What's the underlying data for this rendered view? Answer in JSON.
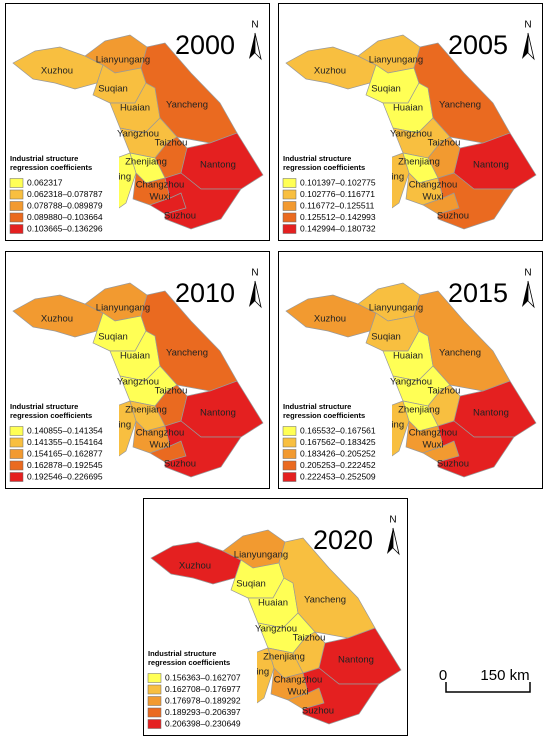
{
  "panels": [
    {
      "year": "2000",
      "north": "N",
      "legend_title": [
        "Industrial structure",
        "regression coefficients"
      ],
      "legend": [
        {
          "label": "0.062317",
          "color": "#ffff55"
        },
        {
          "label": "0.062318–0.078787",
          "color": "#f8bf40"
        },
        {
          "label": "0.078788–0.089879",
          "color": "#f29a30"
        },
        {
          "label": "0.089880–0.103664",
          "color": "#ea6a20"
        },
        {
          "label": "0.103665–0.136296",
          "color": "#e42020"
        }
      ],
      "regions": [
        {
          "name": "Xuzhou",
          "color": "#f8bf40"
        },
        {
          "name": "Lianyungang",
          "color": "#f29a30"
        },
        {
          "name": "Suqian",
          "color": "#f8bf40"
        },
        {
          "name": "Huaian",
          "color": "#f8bf40"
        },
        {
          "name": "Yancheng",
          "color": "#ea6a20"
        },
        {
          "name": "Yangzhou",
          "color": "#f8bf40"
        },
        {
          "name": "Taizhou",
          "color": "#ea6a20"
        },
        {
          "name": "Nantong",
          "color": "#e42020"
        },
        {
          "name": "Nanjing",
          "color": "#ffff55"
        },
        {
          "name": "Zhenjiang",
          "color": "#ffff55"
        },
        {
          "name": "Changzhou",
          "color": "#ea6a20"
        },
        {
          "name": "Wuxi",
          "color": "#e42020"
        },
        {
          "name": "Suzhou",
          "color": "#e42020"
        }
      ]
    },
    {
      "year": "2005",
      "north": "N",
      "legend_title": [
        "Industrial structure",
        "regression coefficients"
      ],
      "legend": [
        {
          "label": "0.101397–0.102775",
          "color": "#ffff55"
        },
        {
          "label": "0.102776–0.116771",
          "color": "#f8bf40"
        },
        {
          "label": "0.116772–0.125511",
          "color": "#f29a30"
        },
        {
          "label": "0.125512–0.142993",
          "color": "#ea6a20"
        },
        {
          "label": "0.142994–0.180732",
          "color": "#e42020"
        }
      ],
      "regions": [
        {
          "name": "Xuzhou",
          "color": "#f8bf40"
        },
        {
          "name": "Lianyungang",
          "color": "#f8bf40"
        },
        {
          "name": "Suqian",
          "color": "#ffff55"
        },
        {
          "name": "Huaian",
          "color": "#ffff55"
        },
        {
          "name": "Yancheng",
          "color": "#ea6a20"
        },
        {
          "name": "Yangzhou",
          "color": "#f8bf40"
        },
        {
          "name": "Taizhou",
          "color": "#f29a30"
        },
        {
          "name": "Nantong",
          "color": "#e42020"
        },
        {
          "name": "Nanjing",
          "color": "#f8bf40"
        },
        {
          "name": "Zhenjiang",
          "color": "#ffff55"
        },
        {
          "name": "Changzhou",
          "color": "#f8bf40"
        },
        {
          "name": "Wuxi",
          "color": "#f29a30"
        },
        {
          "name": "Suzhou",
          "color": "#ea6a20"
        }
      ]
    },
    {
      "year": "2010",
      "north": "N",
      "legend_title": [
        "Industrial structure",
        "regression coefficients"
      ],
      "legend": [
        {
          "label": "0.140855–0.141354",
          "color": "#ffff55"
        },
        {
          "label": "0.141355–0.154164",
          "color": "#f8bf40"
        },
        {
          "label": "0.154165–0.162877",
          "color": "#f29a30"
        },
        {
          "label": "0.162878–0.192545",
          "color": "#ea6a20"
        },
        {
          "label": "0.192546–0.226695",
          "color": "#e42020"
        }
      ],
      "regions": [
        {
          "name": "Xuzhou",
          "color": "#f29a30"
        },
        {
          "name": "Lianyungang",
          "color": "#f29a30"
        },
        {
          "name": "Suqian",
          "color": "#ffff55"
        },
        {
          "name": "Huaian",
          "color": "#ffff55"
        },
        {
          "name": "Yancheng",
          "color": "#ea6a20"
        },
        {
          "name": "Yangzhou",
          "color": "#ffff55"
        },
        {
          "name": "Taizhou",
          "color": "#ea6a20"
        },
        {
          "name": "Nantong",
          "color": "#e42020"
        },
        {
          "name": "Nanjing",
          "color": "#f8bf40"
        },
        {
          "name": "Zhenjiang",
          "color": "#f8bf40"
        },
        {
          "name": "Changzhou",
          "color": "#f29a30"
        },
        {
          "name": "Wuxi",
          "color": "#ea6a20"
        },
        {
          "name": "Suzhou",
          "color": "#e42020"
        }
      ]
    },
    {
      "year": "2015",
      "north": "N",
      "legend_title": [
        "Industrial structure",
        "regression coefficients"
      ],
      "legend": [
        {
          "label": "0.165532–0.167561",
          "color": "#ffff55"
        },
        {
          "label": "0.167562–0.183425",
          "color": "#f8bf40"
        },
        {
          "label": "0.183426–0.205252",
          "color": "#f29a30"
        },
        {
          "label": "0.205253–0.222452",
          "color": "#ea6a20"
        },
        {
          "label": "0.222453–0.252509",
          "color": "#e42020"
        }
      ],
      "regions": [
        {
          "name": "Xuzhou",
          "color": "#f29a30"
        },
        {
          "name": "Lianyungang",
          "color": "#f8bf40"
        },
        {
          "name": "Suqian",
          "color": "#f8bf40"
        },
        {
          "name": "Huaian",
          "color": "#ffff55"
        },
        {
          "name": "Yancheng",
          "color": "#f29a30"
        },
        {
          "name": "Yangzhou",
          "color": "#ffff55"
        },
        {
          "name": "Taizhou",
          "color": "#f8bf40"
        },
        {
          "name": "Nantong",
          "color": "#e42020"
        },
        {
          "name": "Nanjing",
          "color": "#f8bf40"
        },
        {
          "name": "Zhenjiang",
          "color": "#ffff55"
        },
        {
          "name": "Changzhou",
          "color": "#f29a30"
        },
        {
          "name": "Wuxi",
          "color": "#f29a30"
        },
        {
          "name": "Suzhou",
          "color": "#e42020"
        }
      ]
    },
    {
      "year": "2020",
      "north": "N",
      "legend_title": [
        "Industrial structure",
        "regression coefficients"
      ],
      "legend": [
        {
          "label": "0.156363–0.162707",
          "color": "#ffff55"
        },
        {
          "label": "0.162708–0.176977",
          "color": "#f8bf40"
        },
        {
          "label": "0.176978–0.189292",
          "color": "#f29a30"
        },
        {
          "label": "0.189293–0.206397",
          "color": "#ea6a20"
        },
        {
          "label": "0.206398–0.230649",
          "color": "#e42020"
        }
      ],
      "regions": [
        {
          "name": "Xuzhou",
          "color": "#e42020"
        },
        {
          "name": "Lianyungang",
          "color": "#f29a30"
        },
        {
          "name": "Suqian",
          "color": "#ffff55"
        },
        {
          "name": "Huaian",
          "color": "#ffff55"
        },
        {
          "name": "Yancheng",
          "color": "#f8bf40"
        },
        {
          "name": "Yangzhou",
          "color": "#ffff55"
        },
        {
          "name": "Taizhou",
          "color": "#f8bf40"
        },
        {
          "name": "Nantong",
          "color": "#e42020"
        },
        {
          "name": "Nanjing",
          "color": "#f8bf40"
        },
        {
          "name": "Zhenjiang",
          "color": "#f8bf40"
        },
        {
          "name": "Changzhou",
          "color": "#f29a30"
        },
        {
          "name": "Wuxi",
          "color": "#f29a30"
        },
        {
          "name": "Suzhou",
          "color": "#e42020"
        }
      ]
    }
  ],
  "scale_bar": {
    "start": "0",
    "end": "150 km"
  }
}
